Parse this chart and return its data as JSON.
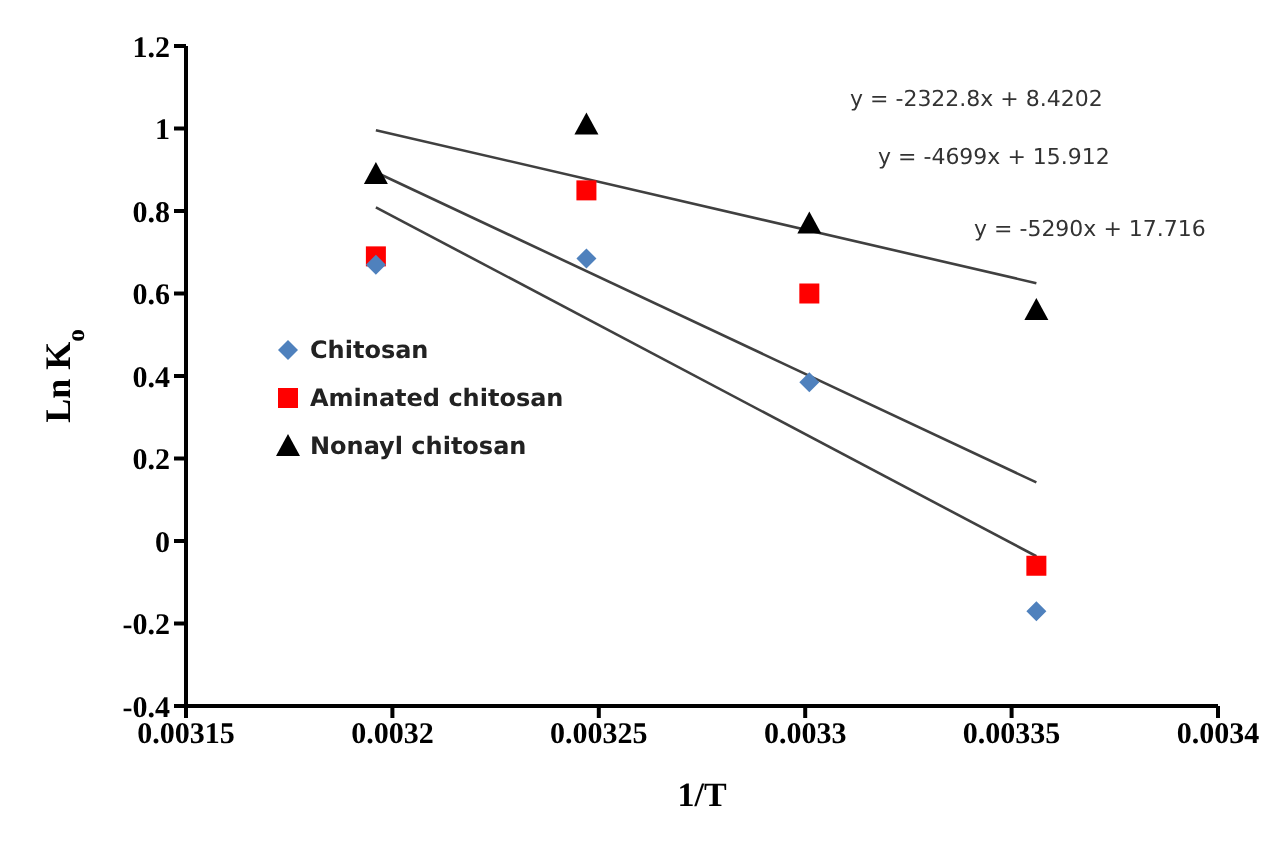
{
  "chart_data": {
    "type": "scatter",
    "xlabel": "1/T",
    "ylabel": "Ln K$_{o}$",
    "xlim": [
      0.00315,
      0.0034
    ],
    "xticks": [
      0.00315,
      0.0032,
      0.00325,
      0.0033,
      0.00335,
      0.0034
    ],
    "ylim": [
      -0.4,
      1.2
    ],
    "yticks": [
      -0.4,
      -0.2,
      0,
      0.2,
      0.4,
      0.6,
      0.8,
      1,
      1.2
    ],
    "grid": false,
    "legend": "left",
    "series": [
      {
        "name": "Chitosan",
        "color": "#4f81bd",
        "marker": "diamond",
        "x": [
          0.003196,
          0.003247,
          0.003301,
          0.003356
        ],
        "values": [
          0.67,
          0.685,
          0.385,
          -0.17
        ]
      },
      {
        "name": "Aminated chitosan",
        "color": "#ff0000",
        "marker": "square",
        "x": [
          0.003196,
          0.003247,
          0.003301,
          0.003356
        ],
        "values": [
          0.69,
          0.85,
          0.6,
          -0.06
        ]
      },
      {
        "name": "Nonayl chitosan",
        "color": "#000000",
        "marker": "triangle",
        "x": [
          0.003196,
          0.003247,
          0.003301,
          0.003356
        ],
        "values": [
          0.89,
          1.01,
          0.77,
          0.56
        ]
      },
      {
        "type": "line",
        "color": "#404040",
        "marker": "none",
        "x": [
          0.003196,
          0.003356
        ],
        "values": [
          0.996,
          0.625
        ]
      },
      {
        "type": "line",
        "color": "#404040",
        "marker": "none",
        "x": [
          0.003196,
          0.003356
        ],
        "values": [
          0.894,
          0.142
        ]
      },
      {
        "type": "line",
        "color": "#404040",
        "marker": "none",
        "x": [
          0.003196,
          0.003356
        ],
        "values": [
          0.809,
          -0.037
        ]
      }
    ],
    "annotations": [
      "y = -2322.8x + 8.4202",
      "y = -4699x + 15.912",
      "y = -5290x + 17.716"
    ]
  }
}
